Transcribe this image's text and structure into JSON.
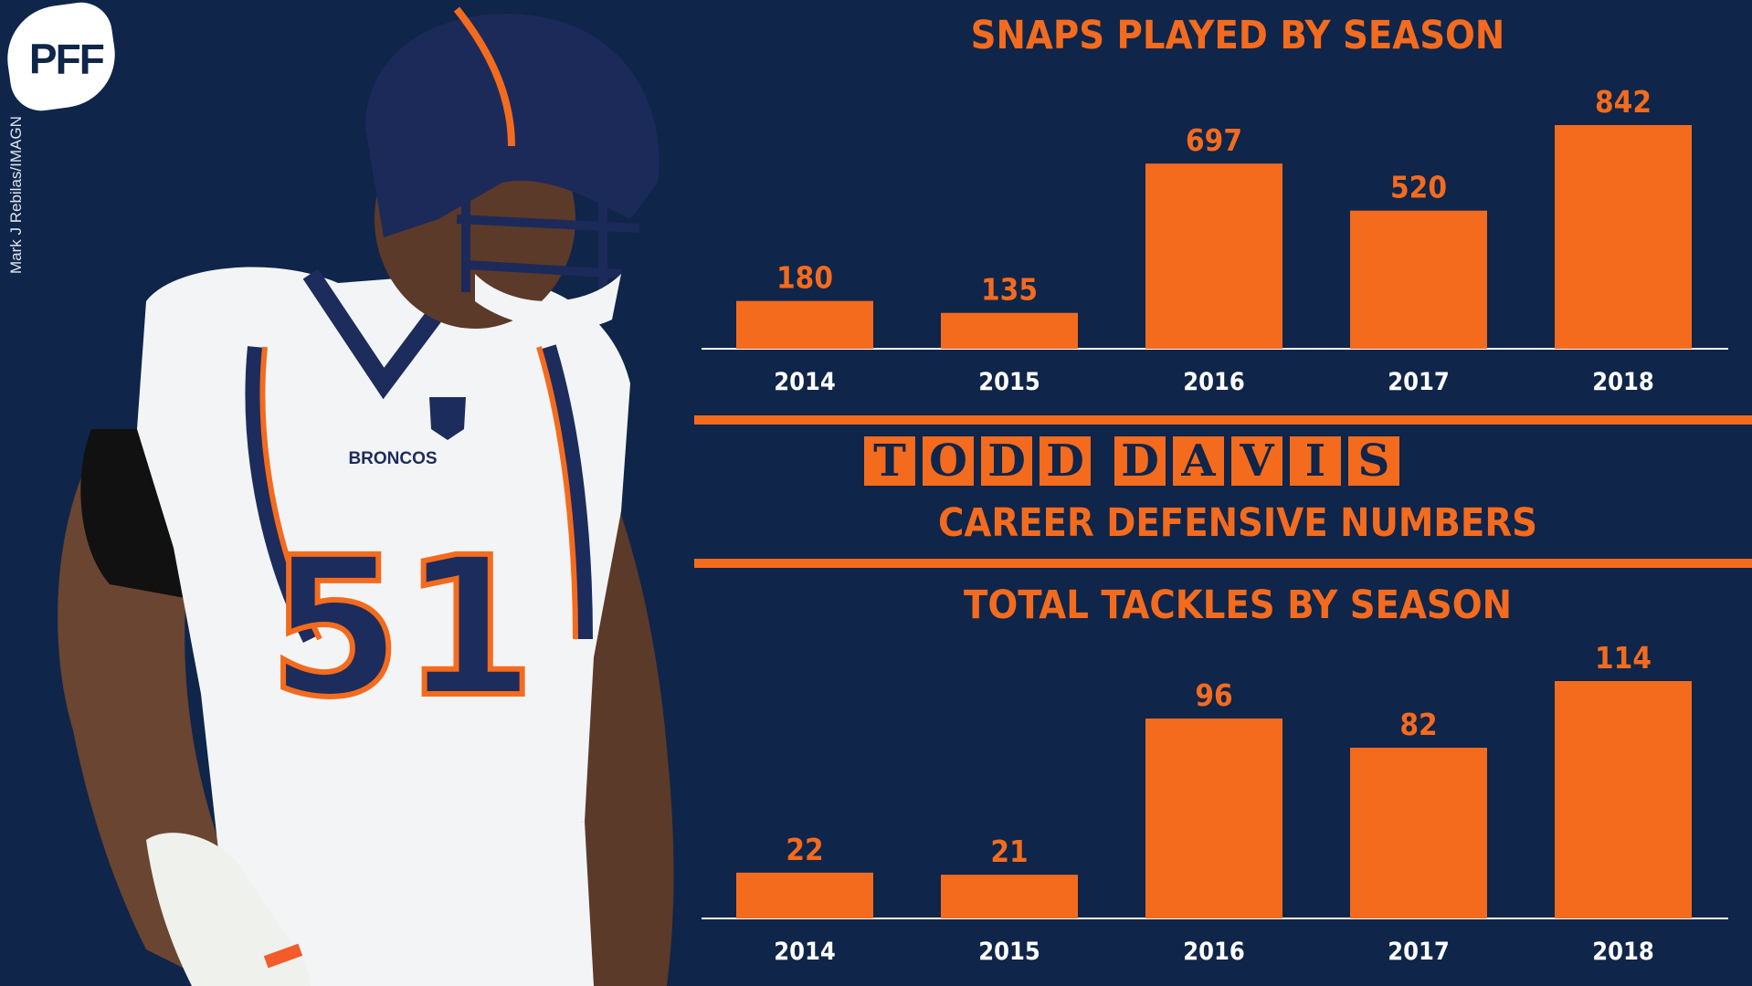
{
  "branding": {
    "logo": "PFF",
    "photo_credit": "Mark J Rebilas/IMAGN"
  },
  "player": {
    "team_name": "BRONCOS",
    "jersey_number": "51"
  },
  "header": {
    "name": "TODD DAVIS",
    "subtitle": "CAREER DEFENSIVE NUMBERS"
  },
  "colors": {
    "background": "#0f2549",
    "accent": "#f46b1e"
  },
  "chart_data": [
    {
      "type": "bar",
      "title": "SNAPS PLAYED BY SEASON",
      "categories": [
        "2014",
        "2015",
        "2016",
        "2017",
        "2018"
      ],
      "values": [
        180,
        135,
        697,
        520,
        842
      ],
      "ylim": [
        0,
        842
      ]
    },
    {
      "type": "bar",
      "title": "TOTAL TACKLES BY SEASON",
      "categories": [
        "2014",
        "2015",
        "2016",
        "2017",
        "2018"
      ],
      "values": [
        22,
        21,
        96,
        82,
        114
      ],
      "ylim": [
        0,
        114
      ]
    }
  ]
}
